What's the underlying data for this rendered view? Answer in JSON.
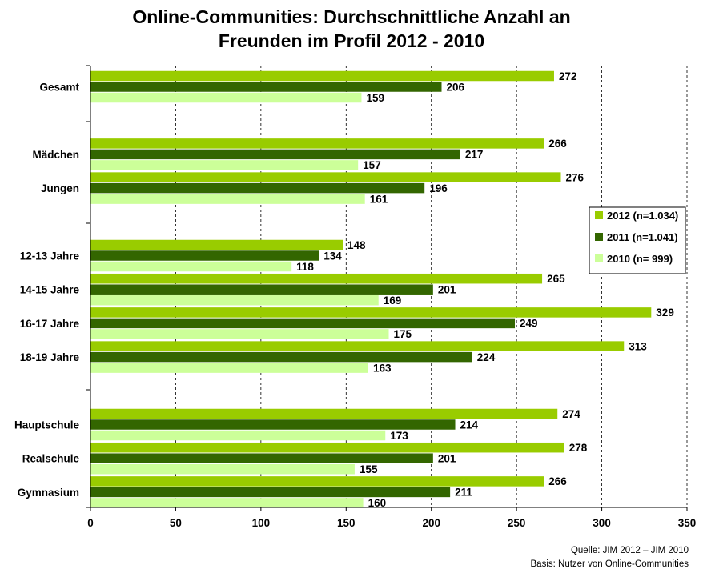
{
  "chart_data": {
    "type": "bar",
    "orientation": "horizontal",
    "title": "Online-Communities: Durchschnittliche Anzahl an Freunden im Profil 2012 - 2010",
    "title_lines": [
      "Online-Communities: Durchschnittliche Anzahl an",
      "Freunden im Profil 2012 - 2010"
    ],
    "categories": [
      "Gesamt",
      "Mädchen",
      "Jungen",
      "12-13 Jahre",
      "14-15 Jahre",
      "16-17 Jahre",
      "18-19 Jahre",
      "Hauptschule",
      "Realschule",
      "Gymnasium"
    ],
    "series": [
      {
        "name": "2012 (n=1.034)",
        "color": "#99cc00",
        "values": [
          272,
          266,
          276,
          148,
          265,
          329,
          313,
          274,
          278,
          266
        ]
      },
      {
        "name": "2011 (n=1.041)",
        "color": "#336600",
        "values": [
          206,
          217,
          196,
          134,
          201,
          249,
          224,
          214,
          201,
          211
        ]
      },
      {
        "name": "2010 (n= 999)",
        "color": "#ccff99",
        "values": [
          159,
          157,
          161,
          118,
          169,
          175,
          163,
          173,
          155,
          160
        ]
      }
    ],
    "xlim": [
      0,
      350
    ],
    "xticks": [
      "0",
      "50",
      "100",
      "150",
      "200",
      "250",
      "300",
      "350"
    ],
    "grid": "vertical dashed",
    "legend_position": "right"
  },
  "source": {
    "line1": "Quelle: JIM 2012 – JIM 2010",
    "line2": "Basis: Nutzer von Online-Communities"
  }
}
